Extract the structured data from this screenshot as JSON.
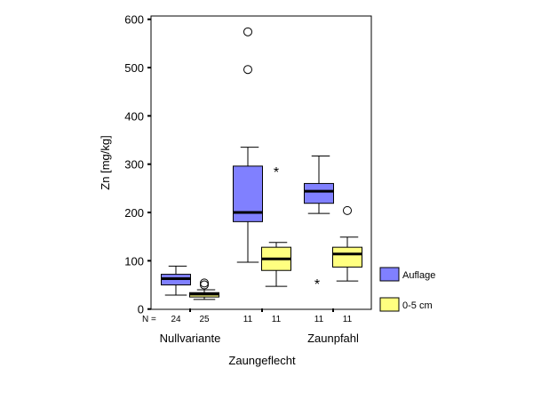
{
  "chart_data": {
    "type": "boxplot",
    "ylabel": "Zn [mg/kg]",
    "xlabel": "",
    "ylim": [
      0,
      600
    ],
    "yticks": [
      0,
      100,
      200,
      300,
      400,
      500,
      600
    ],
    "n_label": "N =",
    "legend": {
      "placement": "right",
      "entries": [
        {
          "name": "Auflage",
          "color": "#8080ff"
        },
        {
          "name": "0-5 cm",
          "color": "#ffff80"
        }
      ]
    },
    "groups": [
      "Nullvariante",
      "Zaungeflecht",
      "Zaunpfahl"
    ],
    "boxes": [
      {
        "group": "Nullvariante",
        "series": "Auflage",
        "n": "24",
        "whisker_low": 29,
        "q1": 50,
        "median": 63,
        "q3": 72,
        "whisker_high": 89,
        "outliers": [],
        "extremes": []
      },
      {
        "group": "Nullvariante",
        "series": "0-5 cm",
        "n": "25",
        "whisker_low": 20,
        "q1": 25,
        "median": 31,
        "q3": 34,
        "whisker_high": 40,
        "outliers": [
          54,
          50
        ],
        "extremes": []
      },
      {
        "group": "Zaungeflecht",
        "series": "Auflage",
        "n": "11",
        "whisker_low": 97,
        "q1": 181,
        "median": 200,
        "q3": 296,
        "whisker_high": 335,
        "outliers": [
          574,
          496
        ],
        "extremes": []
      },
      {
        "group": "Zaungeflecht",
        "series": "0-5 cm",
        "n": "11",
        "whisker_low": 47,
        "q1": 80,
        "median": 104,
        "q3": 128,
        "whisker_high": 138,
        "outliers": [],
        "extremes": [
          287
        ]
      },
      {
        "group": "Zaunpfahl",
        "series": "Auflage",
        "n": "11",
        "whisker_low": 198,
        "q1": 219,
        "median": 244,
        "q3": 260,
        "whisker_high": 317,
        "outliers": [],
        "extremes": [
          55
        ]
      },
      {
        "group": "Zaunpfahl",
        "series": "0-5 cm",
        "n": "11",
        "whisker_low": 58,
        "q1": 87,
        "median": 114,
        "q3": 128,
        "whisker_high": 149,
        "outliers": [
          204
        ],
        "extremes": []
      }
    ]
  }
}
